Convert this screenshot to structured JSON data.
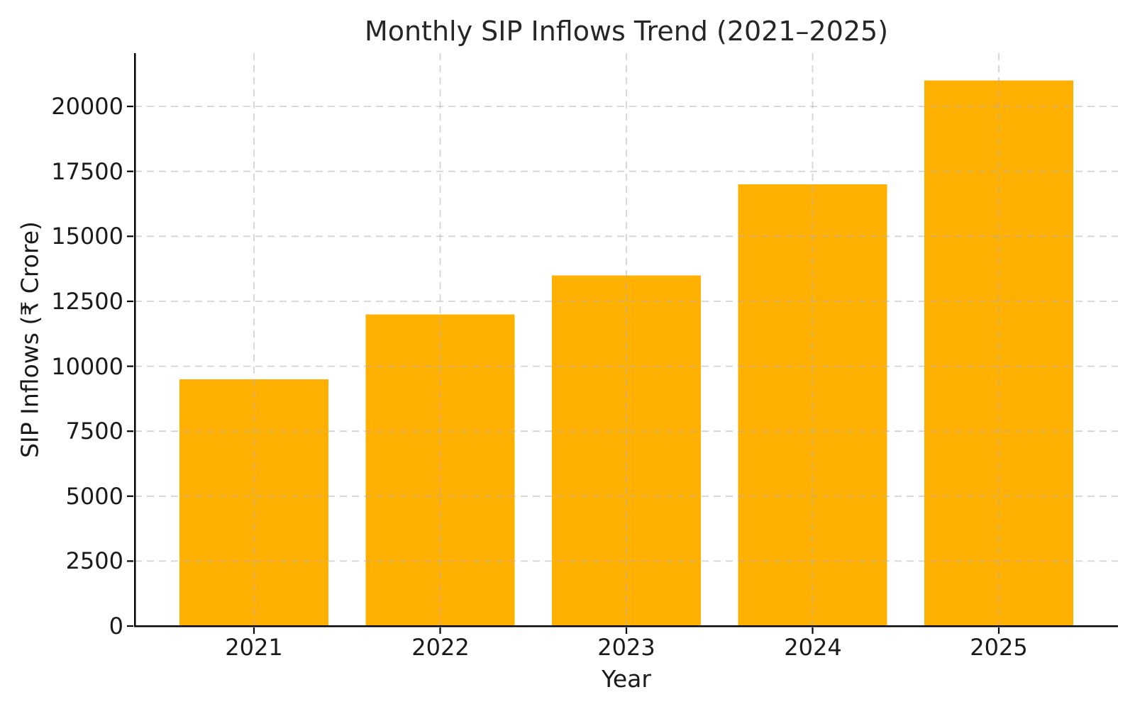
{
  "chart_data": {
    "type": "bar",
    "title": "Monthly SIP Inflows Trend (2021–2025)",
    "xlabel": "Year",
    "ylabel": "SIP Inflows (₹ Crore)",
    "categories": [
      "2021",
      "2022",
      "2023",
      "2024",
      "2025"
    ],
    "values": [
      9500,
      12000,
      13500,
      17000,
      21000
    ],
    "yticks": [
      0,
      2500,
      5000,
      7500,
      10000,
      12500,
      15000,
      17500,
      20000
    ],
    "ylim": [
      0,
      22050
    ],
    "bar_color": "#ffb000",
    "grid_color": "#b0b0b0",
    "axis_color": "#000000",
    "text_color": "#1a1a1a",
    "background_color": "#ffffff",
    "grid": "dashed-both-axes-over-bars",
    "legend_position": "none",
    "bar_width_fraction": 0.8
  }
}
